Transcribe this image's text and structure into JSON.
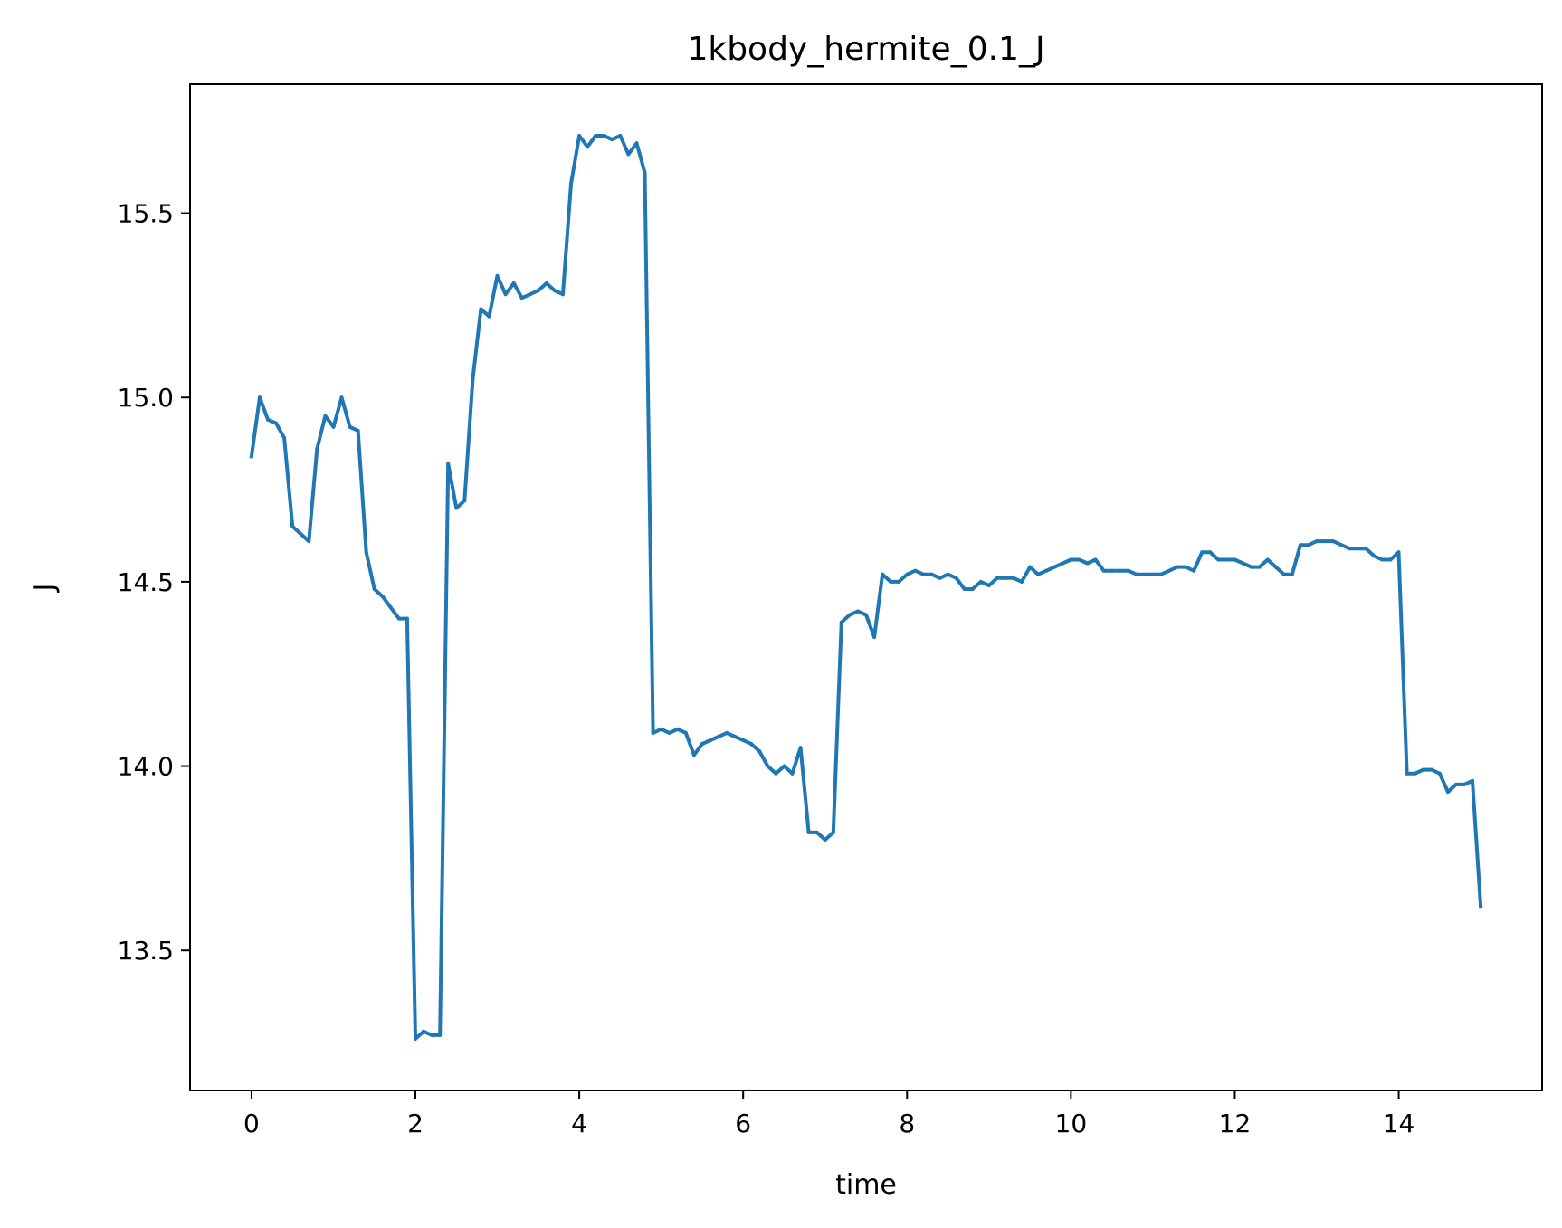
{
  "chart_data": {
    "type": "line",
    "title": "1kbody_hermite_0.1_J",
    "xlabel": "time",
    "ylabel": "J",
    "xlim": [
      -0.75,
      15.75
    ],
    "ylim": [
      13.12,
      15.85
    ],
    "xticks": [
      0,
      2,
      4,
      6,
      8,
      10,
      12,
      14
    ],
    "xtick_labels": [
      "0",
      "2",
      "4",
      "6",
      "8",
      "10",
      "12",
      "14"
    ],
    "yticks": [
      13.5,
      14.0,
      14.5,
      15.0,
      15.5
    ],
    "ytick_labels": [
      "13.5",
      "14.0",
      "14.5",
      "15.0",
      "15.5"
    ],
    "grid": false,
    "legend": "none",
    "series": [
      {
        "color": "#1f77b4",
        "x": [
          0.0,
          0.1,
          0.2,
          0.3,
          0.4,
          0.5,
          0.6,
          0.7,
          0.8,
          0.9,
          1.0,
          1.1,
          1.2,
          1.3,
          1.4,
          1.5,
          1.6,
          1.7,
          1.8,
          1.9,
          2.0,
          2.1,
          2.2,
          2.3,
          2.4,
          2.5,
          2.6,
          2.7,
          2.8,
          2.9,
          3.0,
          3.1,
          3.2,
          3.3,
          3.4,
          3.5,
          3.6,
          3.7,
          3.8,
          3.9,
          4.0,
          4.1,
          4.2,
          4.3,
          4.4,
          4.5,
          4.6,
          4.7,
          4.8,
          4.9,
          5.0,
          5.1,
          5.2,
          5.3,
          5.4,
          5.5,
          5.6,
          5.7,
          5.8,
          5.9,
          6.0,
          6.1,
          6.2,
          6.3,
          6.4,
          6.5,
          6.6,
          6.7,
          6.8,
          6.9,
          7.0,
          7.1,
          7.2,
          7.3,
          7.4,
          7.5,
          7.6,
          7.7,
          7.8,
          7.9,
          8.0,
          8.1,
          8.2,
          8.3,
          8.4,
          8.5,
          8.6,
          8.7,
          8.8,
          8.9,
          9.0,
          9.1,
          9.2,
          9.3,
          9.4,
          9.5,
          9.6,
          9.7,
          9.8,
          9.9,
          10.0,
          10.1,
          10.2,
          10.3,
          10.4,
          10.5,
          10.6,
          10.7,
          10.8,
          10.9,
          11.0,
          11.1,
          11.2,
          11.3,
          11.4,
          11.5,
          11.6,
          11.7,
          11.8,
          11.9,
          12.0,
          12.1,
          12.2,
          12.3,
          12.4,
          12.5,
          12.6,
          12.7,
          12.8,
          12.9,
          13.0,
          13.1,
          13.2,
          13.3,
          13.4,
          13.5,
          13.6,
          13.7,
          13.8,
          13.9,
          14.0,
          14.1,
          14.2,
          14.3,
          14.4,
          14.5,
          14.6,
          14.7,
          14.8,
          14.9,
          15.0
        ],
        "y": [
          14.84,
          15.0,
          14.94,
          14.93,
          14.89,
          14.65,
          14.63,
          14.61,
          14.86,
          14.95,
          14.92,
          15.0,
          14.92,
          14.91,
          14.58,
          14.48,
          14.46,
          14.43,
          14.4,
          14.4,
          13.26,
          13.28,
          13.27,
          13.27,
          14.82,
          14.7,
          14.72,
          15.05,
          15.24,
          15.22,
          15.33,
          15.28,
          15.31,
          15.27,
          15.28,
          15.29,
          15.31,
          15.29,
          15.28,
          15.58,
          15.71,
          15.68,
          15.71,
          15.71,
          15.7,
          15.71,
          15.66,
          15.69,
          15.61,
          14.09,
          14.1,
          14.09,
          14.1,
          14.09,
          14.03,
          14.06,
          14.07,
          14.08,
          14.09,
          14.08,
          14.07,
          14.06,
          14.04,
          14.0,
          13.98,
          14.0,
          13.98,
          14.05,
          13.82,
          13.82,
          13.8,
          13.82,
          14.39,
          14.41,
          14.42,
          14.41,
          14.35,
          14.52,
          14.5,
          14.5,
          14.52,
          14.53,
          14.52,
          14.52,
          14.51,
          14.52,
          14.51,
          14.48,
          14.48,
          14.5,
          14.49,
          14.51,
          14.51,
          14.51,
          14.5,
          14.54,
          14.52,
          14.53,
          14.54,
          14.55,
          14.56,
          14.56,
          14.55,
          14.56,
          14.53,
          14.53,
          14.53,
          14.53,
          14.52,
          14.52,
          14.52,
          14.52,
          14.53,
          14.54,
          14.54,
          14.53,
          14.58,
          14.58,
          14.56,
          14.56,
          14.56,
          14.55,
          14.54,
          14.54,
          14.56,
          14.54,
          14.52,
          14.52,
          14.6,
          14.6,
          14.61,
          14.61,
          14.61,
          14.6,
          14.59,
          14.59,
          14.59,
          14.57,
          14.56,
          14.56,
          14.58,
          13.98,
          13.98,
          13.99,
          13.99,
          13.98,
          13.93,
          13.95,
          13.95,
          13.96,
          13.62
        ]
      }
    ]
  }
}
